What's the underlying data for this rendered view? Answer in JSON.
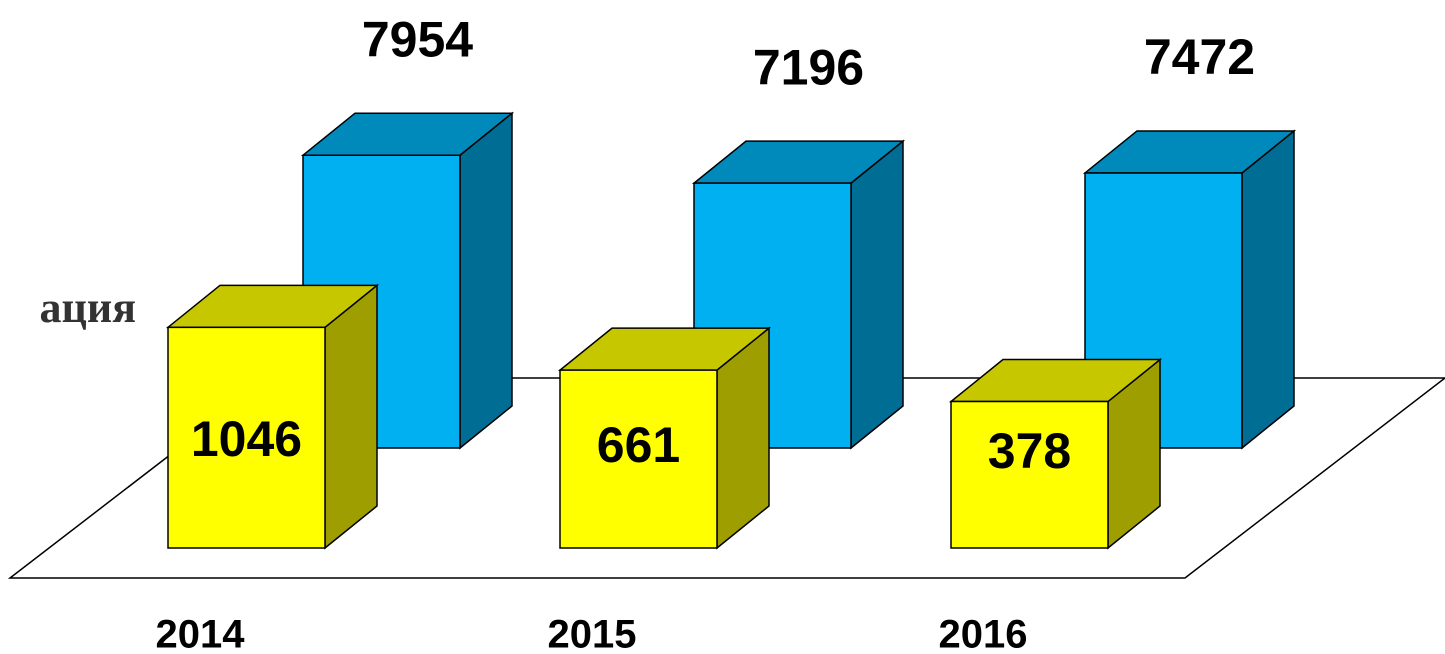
{
  "chart_data": {
    "type": "bar3d",
    "annotation": "ация",
    "categories": [
      "2014",
      "2015",
      "2016"
    ],
    "ylim": [
      0,
      8150
    ],
    "y2lim": [
      -940,
      1760
    ],
    "series": [
      {
        "color": "#00b0f0",
        "values": [
          7954,
          7196,
          7472
        ]
      },
      {
        "color": "#ffff00",
        "axis": "y2",
        "values": [
          1046,
          661,
          378
        ]
      }
    ]
  }
}
